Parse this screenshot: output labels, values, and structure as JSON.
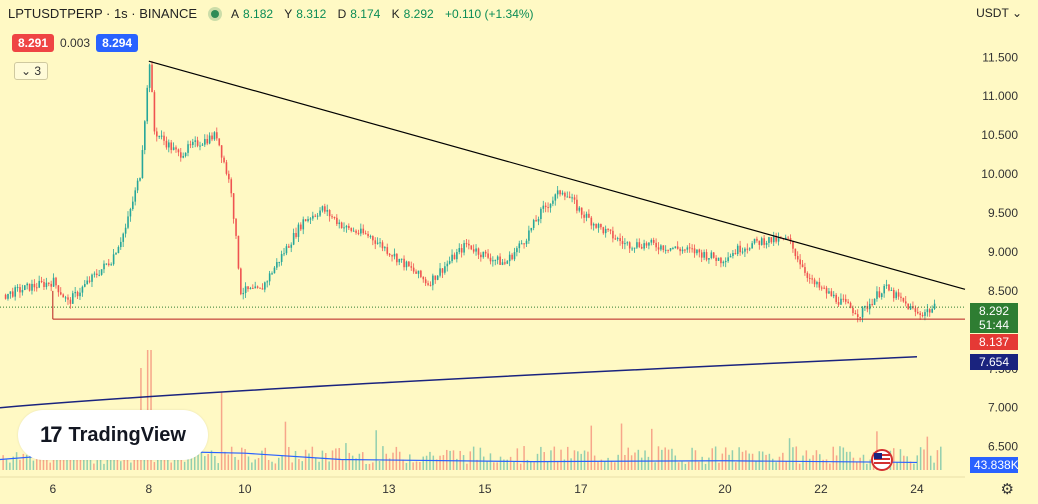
{
  "header": {
    "symbol": "LPTUSDTPERP · 1s · BINANCE",
    "open_label": "A",
    "open": "8.182",
    "high_label": "Y",
    "high": "8.312",
    "low_label": "D",
    "low": "8.174",
    "close_label": "K",
    "close": "8.292",
    "change": "+0.110 (+1.34%)"
  },
  "trade": {
    "bid": "8.291",
    "spread": "0.003",
    "ask": "8.294"
  },
  "indicators_collapse": "3",
  "currency": "USDT",
  "price_labels": {
    "last": "8.292",
    "countdown": "51:44",
    "line_level": "8.137",
    "ma": "7.654",
    "volume": "43.838K"
  },
  "colors": {
    "up": "#26a69a",
    "down": "#ef5350",
    "background": "#fff9c4",
    "ma": "#1a237e",
    "volume_ma": "#2962ff",
    "support": "#b71c1c",
    "trendline": "#000000"
  },
  "logo": {
    "mark": "17",
    "text": "TradingView"
  },
  "chart_data": {
    "type": "candlestick",
    "y_ticks": [
      "11.500",
      "11.000",
      "10.500",
      "10.000",
      "9.500",
      "9.000",
      "8.500",
      "7.500",
      "7.000",
      "6.500"
    ],
    "x_ticks": [
      "6",
      "8",
      "10",
      "13",
      "15",
      "17",
      "20",
      "22",
      "24"
    ],
    "ylim": [
      6.2,
      11.85
    ],
    "x_range": [
      4.9,
      25.0
    ],
    "price_path": [
      [
        5.0,
        8.45
      ],
      [
        5.5,
        8.55
      ],
      [
        6.0,
        8.62
      ],
      [
        6.3,
        8.35
      ],
      [
        6.7,
        8.6
      ],
      [
        7.2,
        8.9
      ],
      [
        7.5,
        9.3
      ],
      [
        7.8,
        10.0
      ],
      [
        8.0,
        11.45
      ],
      [
        8.1,
        10.55
      ],
      [
        8.6,
        10.25
      ],
      [
        9.0,
        10.4
      ],
      [
        9.4,
        10.5
      ],
      [
        9.7,
        9.8
      ],
      [
        9.9,
        8.5
      ],
      [
        10.3,
        8.5
      ],
      [
        10.7,
        8.9
      ],
      [
        11.2,
        9.4
      ],
      [
        11.6,
        9.55
      ],
      [
        12.1,
        9.3
      ],
      [
        12.6,
        9.2
      ],
      [
        13.0,
        9.0
      ],
      [
        13.4,
        8.8
      ],
      [
        13.8,
        8.6
      ],
      [
        14.2,
        8.85
      ],
      [
        14.6,
        9.1
      ],
      [
        15.0,
        8.95
      ],
      [
        15.4,
        8.85
      ],
      [
        15.8,
        9.15
      ],
      [
        16.2,
        9.55
      ],
      [
        16.6,
        9.8
      ],
      [
        17.0,
        9.5
      ],
      [
        17.4,
        9.3
      ],
      [
        17.9,
        9.1
      ],
      [
        18.4,
        9.1
      ],
      [
        18.9,
        9.05
      ],
      [
        19.4,
        9.0
      ],
      [
        19.9,
        8.9
      ],
      [
        20.3,
        9.05
      ],
      [
        20.8,
        9.15
      ],
      [
        21.3,
        9.15
      ],
      [
        21.8,
        8.6
      ],
      [
        22.3,
        8.4
      ],
      [
        22.8,
        8.2
      ],
      [
        23.3,
        8.55
      ],
      [
        23.6,
        8.4
      ],
      [
        24.0,
        8.2
      ],
      [
        24.4,
        8.29
      ]
    ],
    "trendline": {
      "start": [
        8.0,
        11.45
      ],
      "end": [
        25.0,
        8.52
      ]
    },
    "support_line": {
      "start": [
        6.0,
        8.137
      ],
      "end": [
        25.0,
        8.137
      ]
    },
    "last_price_line": 8.292,
    "moving_average": {
      "start": [
        4.9,
        7.0
      ],
      "mid": [
        10.0,
        7.22
      ],
      "end": [
        24.0,
        7.654
      ]
    },
    "volume": {
      "spikes": [
        [
          7.8,
          0.85
        ],
        [
          8.0,
          1.0
        ],
        [
          9.5,
          0.65
        ],
        [
          8.2,
          0.4
        ],
        [
          5.5,
          0.3
        ]
      ],
      "ma_level": [
        [
          4.9,
          0.25
        ],
        [
          6.0,
          0.35
        ],
        [
          8.0,
          0.45
        ],
        [
          10.0,
          0.4
        ],
        [
          12.0,
          0.25
        ],
        [
          16.0,
          0.2
        ],
        [
          20.0,
          0.22
        ],
        [
          24.0,
          0.18
        ]
      ]
    }
  }
}
